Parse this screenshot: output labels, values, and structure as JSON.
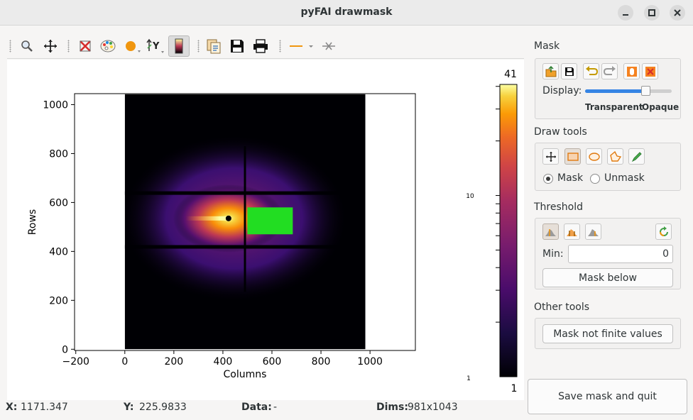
{
  "window": {
    "title": "pyFAI drawmask",
    "controls": [
      "minimize",
      "maximize",
      "close"
    ]
  },
  "toolbar": {
    "icons": [
      "zoom-icon",
      "pan-icon",
      "reset-zoom-icon",
      "colormap-icon",
      "curve-style-icon",
      "y-axis-icon",
      "colorbar-icon",
      "copy-icon",
      "save-icon",
      "print-icon",
      "line-style-icon",
      "crosshair-icon"
    ],
    "accent": "#f0960f"
  },
  "plot": {
    "xlabel": "Columns",
    "ylabel": "Rows",
    "x_ticks": [
      "−200",
      "0",
      "200",
      "400",
      "600",
      "800",
      "1000"
    ],
    "x_tick_values": [
      -200,
      0,
      200,
      400,
      600,
      800,
      1000
    ],
    "y_ticks": [
      "0",
      "200",
      "400",
      "600",
      "800",
      "1000"
    ],
    "y_tick_values": [
      0,
      200,
      400,
      600,
      800,
      1000
    ],
    "xlim": [
      -205,
      1185
    ],
    "ylim": [
      -5,
      1045
    ],
    "image_x": [
      0,
      981
    ],
    "image_y": [
      0,
      1043
    ],
    "beam_center": [
      423,
      535
    ],
    "mask_rect": {
      "x": [
        500,
        685
      ],
      "y": [
        470,
        580
      ],
      "color": "#22dd22"
    },
    "colormap": "inferno",
    "colorbar": {
      "max_label": "41",
      "min_label": "1",
      "mid_label": "10",
      "mid_small_label": "10",
      "low_small_label": "1",
      "scale": "log",
      "min": 1,
      "max": 41
    }
  },
  "status": {
    "x_label": "X:",
    "x_value": "1171.347",
    "y_label": "Y:",
    "y_value": "225.9833",
    "data_label": "Data:",
    "data_value": "-",
    "dims_label": "Dims:",
    "dims_value": "981x1043"
  },
  "panel": {
    "mask": {
      "title": "Mask",
      "display_label": "Display:",
      "transparent_label": "Transparent",
      "opaque_label": "Opaque",
      "slider_value": 0.7
    },
    "draw_tools": {
      "title": "Draw tools",
      "mask_label": "Mask",
      "unmask_label": "Unmask",
      "selected": "Mask"
    },
    "threshold": {
      "title": "Threshold",
      "min_label": "Min:",
      "min_value": "0",
      "mask_below_label": "Mask below"
    },
    "other_tools": {
      "title": "Other tools",
      "mask_not_finite_label": "Mask not finite values"
    },
    "save_quit_label": "Save mask and quit"
  }
}
